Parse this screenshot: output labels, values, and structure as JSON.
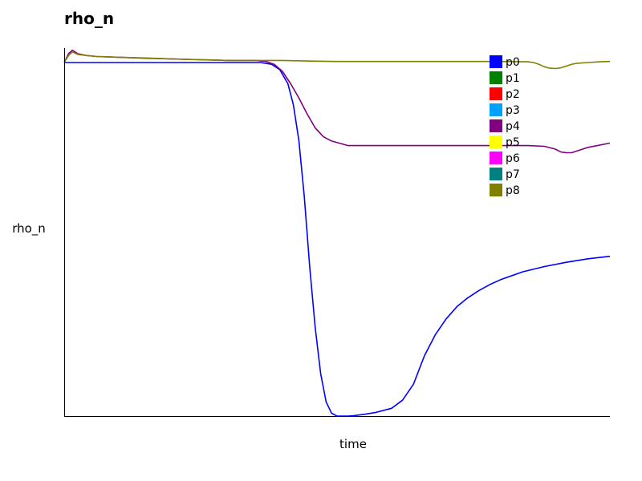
{
  "chart_data": {
    "type": "line",
    "title": "rho_n",
    "xlabel": "time",
    "ylabel": "rho_n",
    "xlim": [
      0,
      100
    ],
    "ylim": [
      0,
      100
    ],
    "grid": false,
    "legend_position": "top-right",
    "series": [
      {
        "name": "p0",
        "color": "#0000ff",
        "visible": true,
        "x": [
          0,
          2,
          5,
          10,
          20,
          30,
          36,
          38,
          39.5,
          41,
          42,
          43,
          44,
          45,
          46,
          47,
          48,
          49,
          50,
          51,
          52,
          53,
          55,
          57,
          60,
          62,
          64,
          66,
          68,
          70,
          72,
          74,
          76,
          78,
          80,
          84,
          88,
          92,
          96,
          100
        ],
        "y": [
          100,
          100,
          100,
          100,
          100,
          100,
          100,
          99.5,
          98,
          94,
          88,
          78,
          62,
          42,
          25,
          12,
          4,
          0.8,
          0,
          0,
          0,
          0.1,
          0.5,
          1,
          2.2,
          4.5,
          9,
          17,
          23,
          27.5,
          31,
          33.5,
          35.5,
          37.2,
          38.6,
          40.8,
          42.3,
          43.5,
          44.5,
          45.2
        ]
      },
      {
        "name": "p1",
        "color": "#008000",
        "visible": false,
        "x": [],
        "y": []
      },
      {
        "name": "p2",
        "color": "#ff0000",
        "visible": false,
        "x": [],
        "y": []
      },
      {
        "name": "p3",
        "color": "#00a0ff",
        "visible": false,
        "x": [],
        "y": []
      },
      {
        "name": "p4",
        "color": "#800080",
        "visible": true,
        "x": [
          0,
          0.8,
          1.5,
          2.5,
          4,
          6,
          10,
          15,
          20,
          25,
          30,
          35,
          37,
          38.5,
          40,
          41.5,
          43,
          44.5,
          46,
          47.5,
          49,
          52,
          60,
          70,
          80,
          85,
          88,
          90,
          91,
          92,
          93,
          94,
          96,
          100
        ],
        "y": [
          100,
          102.5,
          103.5,
          102.5,
          102,
          101.7,
          101.5,
          101.2,
          101,
          100.8,
          100.6,
          100.6,
          100.3,
          99.5,
          97.5,
          94,
          90,
          85.5,
          81.5,
          79,
          77.8,
          76.5,
          76.5,
          76.5,
          76.5,
          76.5,
          76.3,
          75.5,
          74.7,
          74.5,
          74.5,
          75,
          76,
          77.2
        ]
      },
      {
        "name": "p5",
        "color": "#ffff00",
        "visible": false,
        "x": [],
        "y": []
      },
      {
        "name": "p6",
        "color": "#ff00ff",
        "visible": false,
        "x": [],
        "y": []
      },
      {
        "name": "p7",
        "color": "#008080",
        "visible": false,
        "x": [],
        "y": []
      },
      {
        "name": "p8",
        "color": "#808000",
        "visible": true,
        "x": [
          0,
          0.8,
          1.5,
          2.5,
          4,
          6,
          10,
          15,
          20,
          25,
          30,
          35,
          40,
          45,
          50,
          55,
          60,
          70,
          80,
          85,
          86,
          87,
          88,
          89,
          90,
          91,
          92,
          93,
          94,
          96,
          98,
          100
        ],
        "y": [
          100,
          102,
          103,
          102.3,
          102,
          101.7,
          101.5,
          101.3,
          101,
          100.8,
          100.6,
          100.6,
          100.6,
          100.4,
          100.3,
          100.3,
          100.3,
          100.3,
          100.3,
          100.2,
          100,
          99.5,
          98.8,
          98.4,
          98.3,
          98.5,
          99,
          99.5,
          99.8,
          100,
          100.2,
          100.3
        ]
      }
    ]
  }
}
